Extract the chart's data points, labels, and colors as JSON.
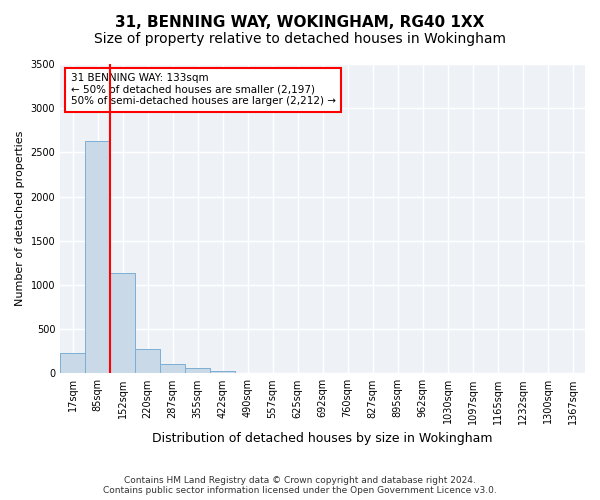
{
  "title1": "31, BENNING WAY, WOKINGHAM, RG40 1XX",
  "title2": "Size of property relative to detached houses in Wokingham",
  "xlabel": "Distribution of detached houses by size in Wokingham",
  "ylabel": "Number of detached properties",
  "footer1": "Contains HM Land Registry data © Crown copyright and database right 2024.",
  "footer2": "Contains public sector information licensed under the Open Government Licence v3.0.",
  "annotation_line1": "31 BENNING WAY: 133sqm",
  "annotation_line2": "← 50% of detached houses are smaller (2,197)",
  "annotation_line3": "50% of semi-detached houses are larger (2,212) →",
  "bar_color": "#c9d9e8",
  "bar_edge_color": "#7bafd4",
  "bin_labels": [
    "17sqm",
    "85sqm",
    "152sqm",
    "220sqm",
    "287sqm",
    "355sqm",
    "422sqm",
    "490sqm",
    "557sqm",
    "625sqm",
    "692sqm",
    "760sqm",
    "827sqm",
    "895sqm",
    "962sqm",
    "1030sqm",
    "1097sqm",
    "1165sqm",
    "1232sqm",
    "1300sqm",
    "1367sqm"
  ],
  "counts": [
    230,
    2630,
    1130,
    270,
    100,
    55,
    25,
    0,
    0,
    0,
    0,
    0,
    0,
    0,
    0,
    0,
    0,
    0,
    0,
    0,
    0
  ],
  "red_line_x": 1.5,
  "ylim": [
    0,
    3500
  ],
  "yticks": [
    0,
    500,
    1000,
    1500,
    2000,
    2500,
    3000,
    3500
  ],
  "background_color": "#eef2f7",
  "grid_color": "#ffffff",
  "title_fontsize": 11,
  "subtitle_fontsize": 10,
  "ylabel_fontsize": 8,
  "xlabel_fontsize": 9,
  "tick_fontsize": 7,
  "footer_fontsize": 6.5,
  "annotation_fontsize": 7.5
}
